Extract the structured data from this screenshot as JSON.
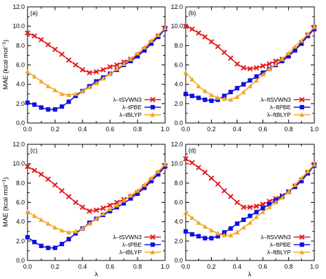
{
  "figure": {
    "ylabel": "MAE (kcal mol",
    "ylabel_sup": "−1",
    "ylabel_close": ")",
    "xlabel": "λ"
  },
  "chart_data": [
    {
      "type": "line",
      "panel_label": "(a)",
      "xlim": [
        0,
        1
      ],
      "ylim": [
        0,
        12
      ],
      "xticks": [
        "0.0",
        "0.2",
        "0.4",
        "0.6",
        "0.8",
        "1.0"
      ],
      "yticks": [
        "0.0",
        "2.0",
        "4.0",
        "6.0",
        "8.0",
        "10.0",
        "12.0"
      ],
      "legend_position": "lower-right",
      "grid": false,
      "x": [
        0,
        0.05,
        0.1,
        0.15,
        0.2,
        0.25,
        0.3,
        0.35,
        0.4,
        0.45,
        0.5,
        0.55,
        0.6,
        0.65,
        0.7,
        0.75,
        0.8,
        0.85,
        0.9,
        0.95,
        1.0
      ],
      "series": [
        {
          "name": "λ–tSVWN3",
          "color": "#e41a1c",
          "marker": "x",
          "values": [
            9.3,
            9.0,
            8.6,
            8.1,
            7.6,
            7.1,
            6.5,
            6.0,
            5.5,
            5.2,
            5.3,
            5.5,
            5.8,
            6.0,
            6.3,
            6.6,
            7.0,
            7.6,
            8.3,
            9.0,
            9.8
          ]
        },
        {
          "name": "λ–tPBE",
          "color": "#1010e0",
          "marker": "square",
          "values": [
            2.1,
            1.9,
            1.6,
            1.4,
            1.4,
            1.7,
            2.2,
            2.8,
            3.3,
            3.8,
            4.3,
            4.7,
            5.1,
            5.5,
            6.0,
            6.4,
            6.9,
            7.5,
            8.2,
            8.9,
            9.7
          ]
        },
        {
          "name": "λ–tBLYP",
          "color": "#f5a623",
          "marker": "triangle",
          "values": [
            5.3,
            4.8,
            4.3,
            3.8,
            3.4,
            3.0,
            2.9,
            3.0,
            3.3,
            3.7,
            4.1,
            4.6,
            5.1,
            5.6,
            6.1,
            6.6,
            7.2,
            7.8,
            8.5,
            9.1,
            9.8
          ]
        }
      ]
    },
    {
      "type": "line",
      "panel_label": "(b)",
      "xlim": [
        0,
        1
      ],
      "ylim": [
        0,
        12
      ],
      "xticks": [
        "0.0",
        "0.2",
        "0.4",
        "0.6",
        "0.8",
        "1.0"
      ],
      "yticks": [
        "0.0",
        "2.0",
        "4.0",
        "6.0",
        "8.0",
        "10.0",
        "12.0"
      ],
      "legend_position": "lower-right",
      "grid": false,
      "x": [
        0,
        0.05,
        0.1,
        0.15,
        0.2,
        0.25,
        0.3,
        0.35,
        0.4,
        0.45,
        0.5,
        0.55,
        0.6,
        0.65,
        0.7,
        0.75,
        0.8,
        0.85,
        0.9,
        0.95,
        1.0
      ],
      "series": [
        {
          "name": "λ–ftSVWN3",
          "color": "#e41a1c",
          "marker": "x",
          "values": [
            10.0,
            9.7,
            9.3,
            8.9,
            8.4,
            7.9,
            7.3,
            6.7,
            6.1,
            5.7,
            5.6,
            5.7,
            5.9,
            6.1,
            6.4,
            6.6,
            7.0,
            7.6,
            8.3,
            9.1,
            9.9
          ]
        },
        {
          "name": "λ–ftPBE",
          "color": "#1010e0",
          "marker": "square",
          "values": [
            3.0,
            2.8,
            2.6,
            2.4,
            2.3,
            2.4,
            2.8,
            3.2,
            3.6,
            4.0,
            4.4,
            4.8,
            5.2,
            5.6,
            6.0,
            6.4,
            6.9,
            7.5,
            8.2,
            9.0,
            9.7
          ]
        },
        {
          "name": "λ–ftBLYP",
          "color": "#f5a623",
          "marker": "triangle",
          "values": [
            5.2,
            4.5,
            3.8,
            3.3,
            2.9,
            2.6,
            2.5,
            2.4,
            2.7,
            3.2,
            3.8,
            4.4,
            5.0,
            5.6,
            6.1,
            6.6,
            7.2,
            7.9,
            8.5,
            9.2,
            9.9
          ]
        }
      ]
    },
    {
      "type": "line",
      "panel_label": "(c)",
      "xlim": [
        0,
        1
      ],
      "ylim": [
        0,
        12
      ],
      "xticks": [
        "0.0",
        "0.2",
        "0.4",
        "0.6",
        "0.8",
        "1.0"
      ],
      "yticks": [
        "0.0",
        "2.0",
        "4.0",
        "6.0",
        "8.0",
        "10.0",
        "12.0"
      ],
      "legend_position": "lower-right",
      "grid": false,
      "x": [
        0,
        0.05,
        0.1,
        0.15,
        0.2,
        0.25,
        0.3,
        0.35,
        0.4,
        0.45,
        0.5,
        0.55,
        0.6,
        0.65,
        0.7,
        0.75,
        0.8,
        0.85,
        0.9,
        0.95,
        1.0
      ],
      "series": [
        {
          "name": "λ–tSVWN3",
          "color": "#e41a1c",
          "marker": "x",
          "values": [
            9.7,
            9.3,
            8.9,
            8.4,
            7.8,
            7.2,
            6.6,
            6.0,
            5.5,
            5.1,
            5.2,
            5.4,
            5.7,
            6.0,
            6.3,
            6.6,
            7.0,
            7.6,
            8.3,
            9.0,
            9.8
          ]
        },
        {
          "name": "λ–tPBE",
          "color": "#1010e0",
          "marker": "square",
          "values": [
            2.4,
            1.9,
            1.5,
            1.3,
            1.3,
            1.7,
            2.2,
            2.8,
            3.3,
            3.9,
            4.3,
            4.7,
            5.1,
            5.5,
            5.9,
            6.4,
            6.9,
            7.5,
            8.2,
            8.9,
            9.7
          ]
        },
        {
          "name": "λ–tBLYP",
          "color": "#f5a623",
          "marker": "triangle",
          "values": [
            5.0,
            4.6,
            4.2,
            3.8,
            3.4,
            3.1,
            2.9,
            3.0,
            3.3,
            3.8,
            4.3,
            4.8,
            5.3,
            5.7,
            6.2,
            6.7,
            7.2,
            7.8,
            8.5,
            9.2,
            9.9
          ]
        }
      ]
    },
    {
      "type": "line",
      "panel_label": "(d)",
      "xlim": [
        0,
        1
      ],
      "ylim": [
        0,
        12
      ],
      "xticks": [
        "0.0",
        "0.2",
        "0.4",
        "0.6",
        "0.8",
        "1.0"
      ],
      "yticks": [
        "0.0",
        "2.0",
        "4.0",
        "6.0",
        "8.0",
        "10.0",
        "12.0"
      ],
      "legend_position": "lower-right",
      "grid": false,
      "x": [
        0,
        0.05,
        0.1,
        0.15,
        0.2,
        0.25,
        0.3,
        0.35,
        0.4,
        0.45,
        0.5,
        0.55,
        0.6,
        0.65,
        0.7,
        0.75,
        0.8,
        0.85,
        0.9,
        0.95,
        1.0
      ],
      "series": [
        {
          "name": "λ–ftSVWN3",
          "color": "#e41a1c",
          "marker": "x",
          "values": [
            10.5,
            10.1,
            9.6,
            9.1,
            8.5,
            7.9,
            7.2,
            6.6,
            6.0,
            5.5,
            5.5,
            5.6,
            5.8,
            6.1,
            6.4,
            6.7,
            7.1,
            7.7,
            8.3,
            9.1,
            9.9
          ]
        },
        {
          "name": "λ–ftPBE",
          "color": "#1010e0",
          "marker": "square",
          "values": [
            3.0,
            2.7,
            2.5,
            2.3,
            2.3,
            2.5,
            2.9,
            3.3,
            3.8,
            4.2,
            4.6,
            5.0,
            5.4,
            5.8,
            6.2,
            6.6,
            7.1,
            7.6,
            8.2,
            9.0,
            9.8
          ]
        },
        {
          "name": "λ–ftBLYP",
          "color": "#f5a623",
          "marker": "triangle",
          "values": [
            4.9,
            4.4,
            3.9,
            3.5,
            3.1,
            2.8,
            2.6,
            2.6,
            2.9,
            3.4,
            3.9,
            4.5,
            5.0,
            5.5,
            6.0,
            6.5,
            7.1,
            7.8,
            8.5,
            9.2,
            9.9
          ]
        }
      ]
    }
  ]
}
